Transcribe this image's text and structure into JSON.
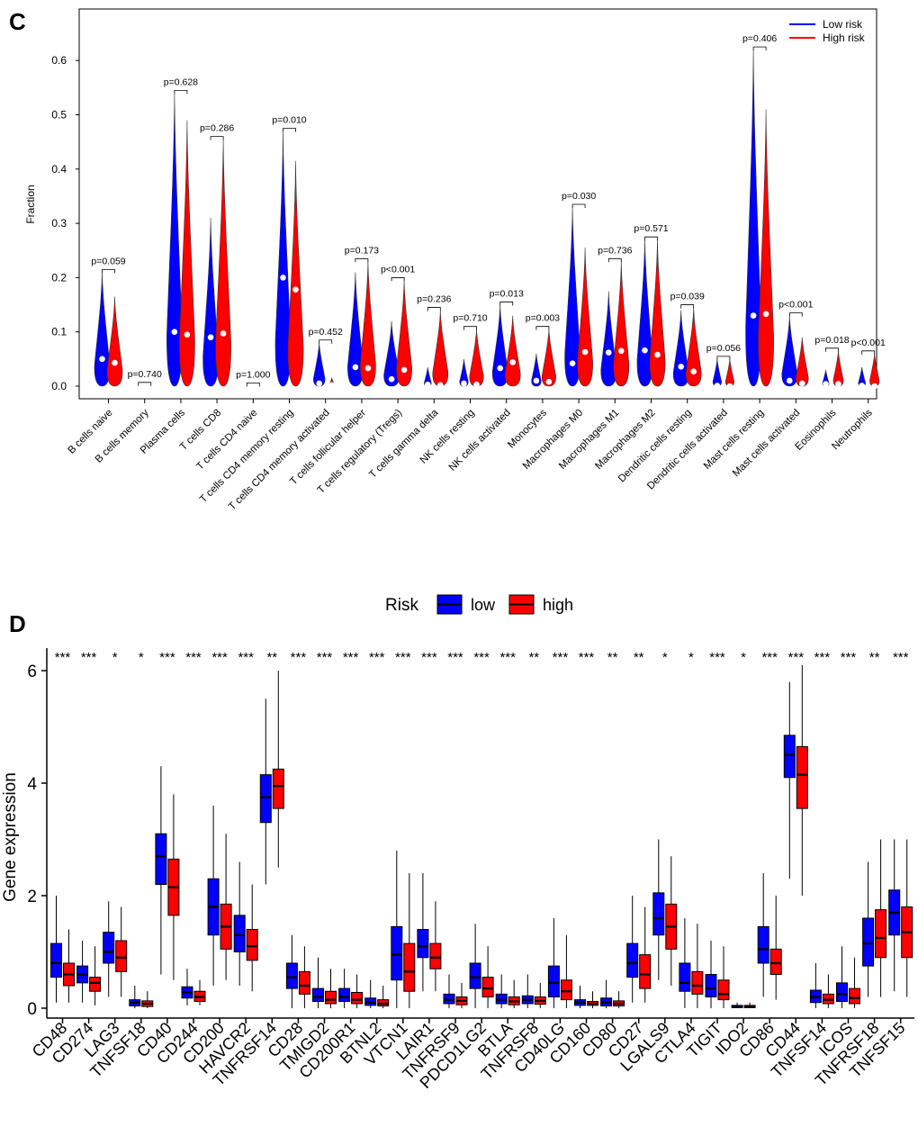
{
  "colors": {
    "low": "#0000ff",
    "high": "#ff0000",
    "axis": "#000000"
  },
  "chart_data": [
    {
      "panel": "C",
      "type": "violin",
      "ylabel": "Fraction",
      "ylim": [
        0,
        0.65
      ],
      "yticks": [
        "0.0",
        "0.1",
        "0.2",
        "0.3",
        "0.4",
        "0.5",
        "0.6"
      ],
      "legend": {
        "position": "top-right",
        "entries": [
          "Low risk",
          "High risk"
        ]
      },
      "categories": [
        "B cells naive",
        "B cells memory",
        "Plasma cells",
        "T cells CD8",
        "T cells CD4 naive",
        "T cells CD4 memory resting",
        "T cells CD4 memory activated",
        "T cells follicular helper",
        "T cells regulatory (Tregs)",
        "T cells gamma delta",
        "NK cells resting",
        "NK cells activated",
        "Monocytes",
        "Macrophages M0",
        "Macrophages M1",
        "Macrophages M2",
        "Dendritic cells resting",
        "Dendritic cells activated",
        "Mast cells resting",
        "Mast cells activated",
        "Eosinophils",
        "Neutrophils"
      ],
      "pvalues": [
        "p=0.059",
        "p=0.740",
        "p=0.628",
        "p=0.286",
        "p=1.000",
        "p=0.010",
        "p=0.452",
        "p=0.173",
        "p<0.001",
        "p=0.236",
        "p=0.710",
        "p=0.013",
        "p=0.003",
        "p=0.030",
        "p=0.736",
        "p=0.571",
        "p=0.039",
        "p=0.056",
        "p=0.406",
        "p<0.001",
        "p=0.018",
        "p<0.001"
      ],
      "series": [
        {
          "name": "Low risk",
          "max": [
            0.21,
            0.002,
            0.54,
            0.31,
            0.001,
            0.47,
            0.08,
            0.21,
            0.12,
            0.035,
            0.05,
            0.15,
            0.06,
            0.33,
            0.175,
            0.27,
            0.14,
            0.05,
            0.62,
            0.13,
            0.03,
            0.035
          ],
          "median": [
            0.05,
            0.0,
            0.1,
            0.09,
            0.0,
            0.2,
            0.005,
            0.035,
            0.013,
            0.003,
            0.005,
            0.033,
            0.01,
            0.042,
            0.062,
            0.066,
            0.036,
            0.001,
            0.13,
            0.01,
            0.004,
            0.001
          ]
        },
        {
          "name": "High risk",
          "max": [
            0.165,
            0.0,
            0.49,
            0.455,
            0.0,
            0.415,
            0.015,
            0.23,
            0.195,
            0.14,
            0.105,
            0.13,
            0.105,
            0.255,
            0.23,
            0.27,
            0.145,
            0.05,
            0.51,
            0.09,
            0.065,
            0.06
          ],
          "median": [
            0.043,
            0.0,
            0.095,
            0.097,
            0.0,
            0.178,
            0.002,
            0.033,
            0.03,
            0.002,
            0.003,
            0.044,
            0.008,
            0.063,
            0.065,
            0.058,
            0.027,
            0.0,
            0.133,
            0.005,
            0.004,
            0.0
          ]
        }
      ]
    },
    {
      "panel": "D",
      "type": "box",
      "ylabel": "Gene expression",
      "ylim": [
        -0.25,
        6.3
      ],
      "yticks": [
        "0",
        "2",
        "4",
        "6"
      ],
      "legend": {
        "position": "top",
        "title": "Risk",
        "entries": [
          "low",
          "high"
        ]
      },
      "categories": [
        "CD48",
        "CD274",
        "LAG3",
        "TNFSF18",
        "CD40",
        "CD244",
        "CD200",
        "HAVCR2",
        "TNFRSF14",
        "CD28",
        "TMIGD2",
        "CD200R1",
        "BTNL2",
        "VTCN1",
        "LAIR1",
        "TNFRSF9",
        "PDCD1LG2",
        "BTLA",
        "TNFRSF8",
        "CD40LG",
        "CD160",
        "CD80",
        "CD27",
        "LGALS9",
        "CTLA4",
        "TIGIT",
        "IDO2",
        "CD86",
        "CD44",
        "TNFSF14",
        "ICOS",
        "TNFRSF18",
        "TNFSF15"
      ],
      "significance": [
        "***",
        "***",
        "*",
        "*",
        "***",
        "***",
        "***",
        "***",
        "**",
        "***",
        "***",
        "***",
        "***",
        "***",
        "***",
        "***",
        "***",
        "***",
        "**",
        "***",
        "***",
        "**",
        "**",
        "*",
        "*",
        "***",
        "*",
        "***",
        "***",
        "***",
        "***",
        "**",
        "***"
      ],
      "series": [
        {
          "name": "low",
          "min": [
            0.1,
            0.1,
            0.2,
            0.0,
            0.6,
            0.05,
            0.4,
            0.4,
            2.2,
            0.0,
            0.0,
            0.0,
            0.0,
            0.0,
            0.3,
            0.0,
            0.0,
            0.0,
            0.0,
            0.0,
            0.0,
            0.0,
            0.1,
            0.5,
            0.0,
            0.0,
            0.0,
            0.2,
            2.3,
            0.0,
            0.0,
            0.2,
            0.3
          ],
          "q1": [
            0.55,
            0.45,
            0.8,
            0.04,
            2.2,
            0.18,
            1.3,
            1.0,
            3.3,
            0.35,
            0.12,
            0.12,
            0.05,
            0.5,
            0.9,
            0.08,
            0.35,
            0.08,
            0.08,
            0.2,
            0.05,
            0.04,
            0.55,
            1.3,
            0.3,
            0.2,
            0.01,
            0.8,
            4.1,
            0.1,
            0.12,
            0.75,
            1.3
          ],
          "median": [
            0.8,
            0.6,
            1.0,
            0.1,
            2.7,
            0.28,
            1.8,
            1.3,
            3.75,
            0.55,
            0.2,
            0.2,
            0.1,
            0.95,
            1.1,
            0.15,
            0.55,
            0.15,
            0.15,
            0.45,
            0.1,
            0.1,
            0.8,
            1.6,
            0.45,
            0.35,
            0.02,
            1.05,
            4.5,
            0.2,
            0.25,
            1.15,
            1.7
          ],
          "q3": [
            1.15,
            0.75,
            1.35,
            0.15,
            3.1,
            0.38,
            2.3,
            1.65,
            4.15,
            0.8,
            0.35,
            0.35,
            0.18,
            1.45,
            1.4,
            0.25,
            0.8,
            0.25,
            0.22,
            0.75,
            0.15,
            0.18,
            1.15,
            2.05,
            0.8,
            0.6,
            0.05,
            1.45,
            4.85,
            0.32,
            0.45,
            1.6,
            2.1
          ],
          "max": [
            2.0,
            1.2,
            1.9,
            0.4,
            4.3,
            0.7,
            3.6,
            2.6,
            5.5,
            1.3,
            0.9,
            0.7,
            0.5,
            2.8,
            2.4,
            0.6,
            1.5,
            0.6,
            0.6,
            1.6,
            0.4,
            0.5,
            2.0,
            3.0,
            1.6,
            1.2,
            0.1,
            2.4,
            5.8,
            0.8,
            1.1,
            2.6,
            3.0
          ]
        },
        {
          "name": "high",
          "min": [
            0.1,
            0.05,
            0.2,
            0.0,
            0.5,
            0.05,
            0.5,
            0.3,
            2.5,
            0.0,
            0.0,
            0.0,
            0.0,
            0.0,
            0.3,
            0.0,
            0.0,
            0.0,
            0.0,
            0.0,
            0.0,
            0.0,
            0.1,
            0.4,
            0.0,
            0.0,
            0.0,
            0.15,
            2.0,
            0.0,
            0.0,
            0.2,
            0.2
          ],
          "q1": [
            0.4,
            0.3,
            0.65,
            0.03,
            1.65,
            0.12,
            1.05,
            0.85,
            3.55,
            0.25,
            0.08,
            0.08,
            0.04,
            0.3,
            0.7,
            0.06,
            0.2,
            0.06,
            0.07,
            0.15,
            0.05,
            0.04,
            0.35,
            1.05,
            0.25,
            0.15,
            0.01,
            0.6,
            3.55,
            0.08,
            0.08,
            0.9,
            0.9
          ],
          "median": [
            0.6,
            0.45,
            0.9,
            0.08,
            2.15,
            0.2,
            1.45,
            1.1,
            3.95,
            0.4,
            0.15,
            0.15,
            0.08,
            0.65,
            0.9,
            0.13,
            0.35,
            0.12,
            0.13,
            0.3,
            0.08,
            0.08,
            0.6,
            1.45,
            0.4,
            0.25,
            0.02,
            0.8,
            4.15,
            0.15,
            0.18,
            1.25,
            1.35
          ],
          "q3": [
            0.8,
            0.55,
            1.2,
            0.13,
            2.65,
            0.3,
            1.85,
            1.4,
            4.25,
            0.65,
            0.3,
            0.28,
            0.15,
            1.15,
            1.15,
            0.2,
            0.55,
            0.2,
            0.2,
            0.5,
            0.12,
            0.13,
            0.95,
            1.85,
            0.65,
            0.5,
            0.05,
            1.05,
            4.65,
            0.25,
            0.35,
            1.75,
            1.8
          ],
          "max": [
            1.4,
            1.1,
            1.8,
            0.3,
            3.8,
            0.5,
            3.1,
            2.2,
            6.0,
            1.1,
            0.7,
            0.6,
            0.4,
            2.4,
            1.9,
            0.45,
            1.1,
            0.5,
            0.45,
            1.3,
            0.3,
            0.3,
            1.8,
            2.7,
            1.5,
            1.1,
            0.1,
            2.0,
            6.1,
            0.6,
            0.9,
            3.0,
            3.0
          ]
        }
      ]
    }
  ]
}
